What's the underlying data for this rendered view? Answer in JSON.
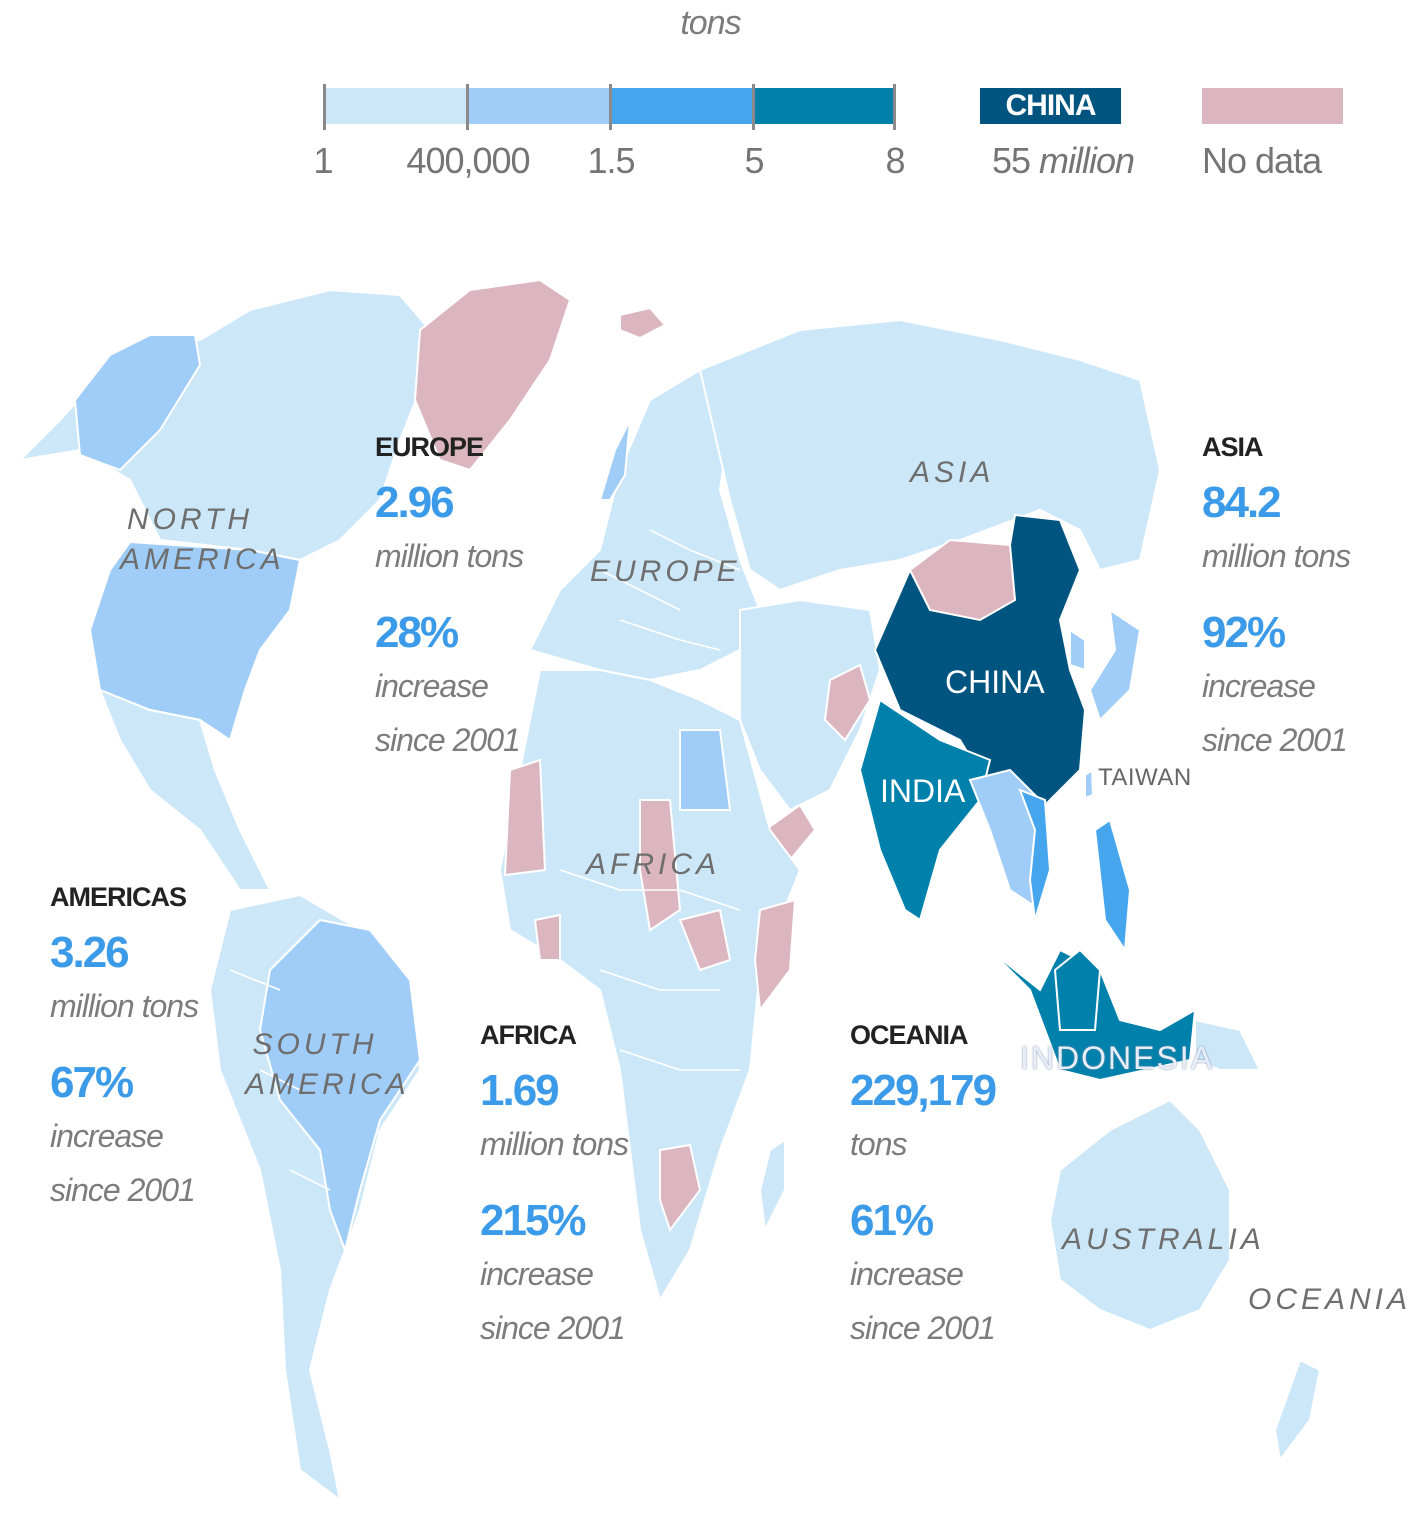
{
  "legend": {
    "unit": "tons",
    "ticks": [
      "1",
      "400,000",
      "1.5",
      "5",
      "8"
    ],
    "bin_colors": [
      "#cce8f8",
      "#a0cdf8",
      "#45a6ee",
      "#0081ab"
    ],
    "china_label": "CHINA",
    "china_value": "55 million",
    "china_color": "#005580",
    "no_data_label": "No data",
    "no_data_color": "#dbb6c0"
  },
  "map_labels": {
    "north_america": [
      "NORTH",
      "AMERICA"
    ],
    "south_america": [
      "SOUTH",
      "AMERICA"
    ],
    "europe": "EUROPE",
    "africa": "AFRICA",
    "asia": "ASIA",
    "australia": "AUSTRALIA",
    "oceania": "OCEANIA",
    "china": "CHINA",
    "india": "INDIA",
    "indonesia": "INDONESIA",
    "taiwan": "TAIWAN"
  },
  "stats": {
    "europe": {
      "name": "EUROPE",
      "value": "2.96",
      "unit": "million tons",
      "pct": "28%",
      "line1": "increase",
      "line2": "since 2001"
    },
    "asia": {
      "name": "ASIA",
      "value": "84.2",
      "unit": "million tons",
      "pct": "92%",
      "line1": "increase",
      "line2": "since 2001"
    },
    "americas": {
      "name": "AMERICAS",
      "value": "3.26",
      "unit": "million tons",
      "pct": "67%",
      "line1": "increase",
      "line2": "since 2001"
    },
    "africa": {
      "name": "AFRICA",
      "value": "1.69",
      "unit": "million tons",
      "pct": "215%",
      "line1": "increase",
      "line2": "since 2001"
    },
    "oceania": {
      "name": "OCEANIA",
      "value": "229,179",
      "unit": "tons",
      "pct": "61%",
      "line1": "increase",
      "line2": "since 2001"
    }
  }
}
